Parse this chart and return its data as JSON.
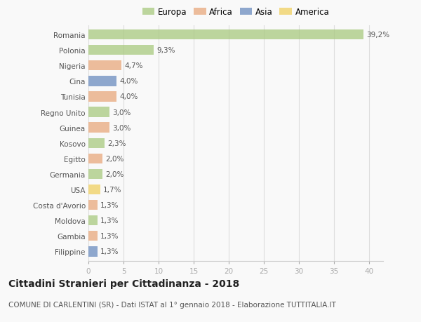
{
  "categories": [
    "Romania",
    "Polonia",
    "Nigeria",
    "Cina",
    "Tunisia",
    "Regno Unito",
    "Guinea",
    "Kosovo",
    "Egitto",
    "Germania",
    "USA",
    "Costa d'Avorio",
    "Moldova",
    "Gambia",
    "Filippine"
  ],
  "values": [
    39.2,
    9.3,
    4.7,
    4.0,
    4.0,
    3.0,
    3.0,
    2.3,
    2.0,
    2.0,
    1.7,
    1.3,
    1.3,
    1.3,
    1.3
  ],
  "labels": [
    "39,2%",
    "9,3%",
    "4,7%",
    "4,0%",
    "4,0%",
    "3,0%",
    "3,0%",
    "2,3%",
    "2,0%",
    "2,0%",
    "1,7%",
    "1,3%",
    "1,3%",
    "1,3%",
    "1,3%"
  ],
  "continents": [
    "Europa",
    "Europa",
    "Africa",
    "Asia",
    "Africa",
    "Europa",
    "Africa",
    "Europa",
    "Africa",
    "Europa",
    "America",
    "Africa",
    "Europa",
    "Africa",
    "Asia"
  ],
  "colors": {
    "Europa": "#a8c97f",
    "Africa": "#e8a87c",
    "Asia": "#6b8cbf",
    "America": "#f0d060"
  },
  "legend_labels": [
    "Europa",
    "Africa",
    "Asia",
    "America"
  ],
  "legend_colors": [
    "#a8c97f",
    "#e8a87c",
    "#6b8cbf",
    "#f0d060"
  ],
  "xlim": [
    0,
    42
  ],
  "xticks": [
    0,
    5,
    10,
    15,
    20,
    25,
    30,
    35,
    40
  ],
  "title": "Cittadini Stranieri per Cittadinanza - 2018",
  "subtitle": "COMUNE DI CARLENTINI (SR) - Dati ISTAT al 1° gennaio 2018 - Elaborazione TUTTITALIA.IT",
  "bg_color": "#f9f9f9",
  "bar_alpha": 0.75,
  "label_fontsize": 7.5,
  "tick_fontsize": 7.5,
  "title_fontsize": 10,
  "subtitle_fontsize": 7.5
}
